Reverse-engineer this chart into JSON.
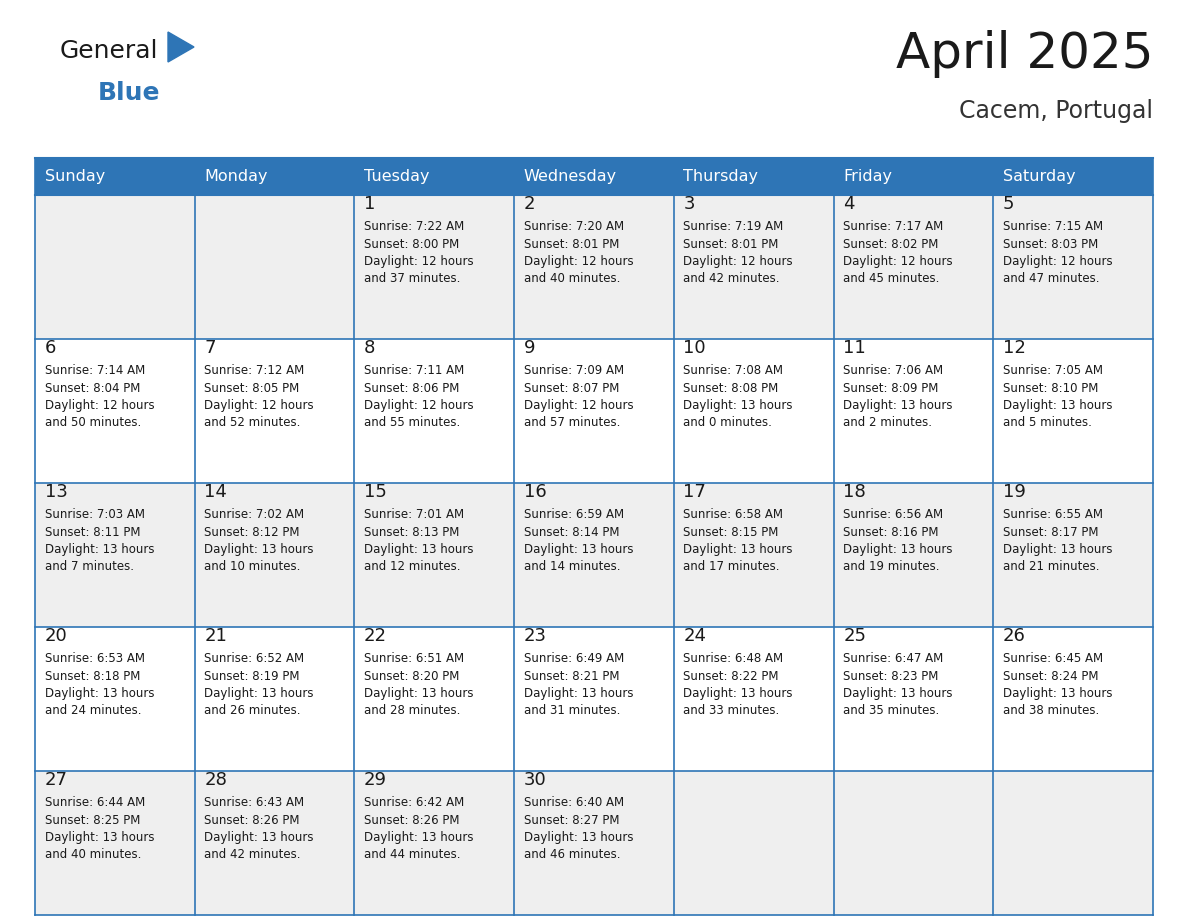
{
  "title": "April 2025",
  "subtitle": "Cacem, Portugal",
  "header_bg": "#2E75B6",
  "header_text_color": "#FFFFFF",
  "cell_bg_row0": "#EFEFEF",
  "cell_bg_row1": "#FFFFFF",
  "cell_border_color": "#2E75B6",
  "day_names": [
    "Sunday",
    "Monday",
    "Tuesday",
    "Wednesday",
    "Thursday",
    "Friday",
    "Saturday"
  ],
  "days": [
    {
      "day": "",
      "sunrise": "",
      "sunset": "",
      "daylight": ""
    },
    {
      "day": "",
      "sunrise": "",
      "sunset": "",
      "daylight": ""
    },
    {
      "day": "1",
      "sunrise": "7:22 AM",
      "sunset": "8:00 PM",
      "daylight": "12 hours and 37 minutes."
    },
    {
      "day": "2",
      "sunrise": "7:20 AM",
      "sunset": "8:01 PM",
      "daylight": "12 hours and 40 minutes."
    },
    {
      "day": "3",
      "sunrise": "7:19 AM",
      "sunset": "8:01 PM",
      "daylight": "12 hours and 42 minutes."
    },
    {
      "day": "4",
      "sunrise": "7:17 AM",
      "sunset": "8:02 PM",
      "daylight": "12 hours and 45 minutes."
    },
    {
      "day": "5",
      "sunrise": "7:15 AM",
      "sunset": "8:03 PM",
      "daylight": "12 hours and 47 minutes."
    },
    {
      "day": "6",
      "sunrise": "7:14 AM",
      "sunset": "8:04 PM",
      "daylight": "12 hours and 50 minutes."
    },
    {
      "day": "7",
      "sunrise": "7:12 AM",
      "sunset": "8:05 PM",
      "daylight": "12 hours and 52 minutes."
    },
    {
      "day": "8",
      "sunrise": "7:11 AM",
      "sunset": "8:06 PM",
      "daylight": "12 hours and 55 minutes."
    },
    {
      "day": "9",
      "sunrise": "7:09 AM",
      "sunset": "8:07 PM",
      "daylight": "12 hours and 57 minutes."
    },
    {
      "day": "10",
      "sunrise": "7:08 AM",
      "sunset": "8:08 PM",
      "daylight": "13 hours and 0 minutes."
    },
    {
      "day": "11",
      "sunrise": "7:06 AM",
      "sunset": "8:09 PM",
      "daylight": "13 hours and 2 minutes."
    },
    {
      "day": "12",
      "sunrise": "7:05 AM",
      "sunset": "8:10 PM",
      "daylight": "13 hours and 5 minutes."
    },
    {
      "day": "13",
      "sunrise": "7:03 AM",
      "sunset": "8:11 PM",
      "daylight": "13 hours and 7 minutes."
    },
    {
      "day": "14",
      "sunrise": "7:02 AM",
      "sunset": "8:12 PM",
      "daylight": "13 hours and 10 minutes."
    },
    {
      "day": "15",
      "sunrise": "7:01 AM",
      "sunset": "8:13 PM",
      "daylight": "13 hours and 12 minutes."
    },
    {
      "day": "16",
      "sunrise": "6:59 AM",
      "sunset": "8:14 PM",
      "daylight": "13 hours and 14 minutes."
    },
    {
      "day": "17",
      "sunrise": "6:58 AM",
      "sunset": "8:15 PM",
      "daylight": "13 hours and 17 minutes."
    },
    {
      "day": "18",
      "sunrise": "6:56 AM",
      "sunset": "8:16 PM",
      "daylight": "13 hours and 19 minutes."
    },
    {
      "day": "19",
      "sunrise": "6:55 AM",
      "sunset": "8:17 PM",
      "daylight": "13 hours and 21 minutes."
    },
    {
      "day": "20",
      "sunrise": "6:53 AM",
      "sunset": "8:18 PM",
      "daylight": "13 hours and 24 minutes."
    },
    {
      "day": "21",
      "sunrise": "6:52 AM",
      "sunset": "8:19 PM",
      "daylight": "13 hours and 26 minutes."
    },
    {
      "day": "22",
      "sunrise": "6:51 AM",
      "sunset": "8:20 PM",
      "daylight": "13 hours and 28 minutes."
    },
    {
      "day": "23",
      "sunrise": "6:49 AM",
      "sunset": "8:21 PM",
      "daylight": "13 hours and 31 minutes."
    },
    {
      "day": "24",
      "sunrise": "6:48 AM",
      "sunset": "8:22 PM",
      "daylight": "13 hours and 33 minutes."
    },
    {
      "day": "25",
      "sunrise": "6:47 AM",
      "sunset": "8:23 PM",
      "daylight": "13 hours and 35 minutes."
    },
    {
      "day": "26",
      "sunrise": "6:45 AM",
      "sunset": "8:24 PM",
      "daylight": "13 hours and 38 minutes."
    },
    {
      "day": "27",
      "sunrise": "6:44 AM",
      "sunset": "8:25 PM",
      "daylight": "13 hours and 40 minutes."
    },
    {
      "day": "28",
      "sunrise": "6:43 AM",
      "sunset": "8:26 PM",
      "daylight": "13 hours and 42 minutes."
    },
    {
      "day": "29",
      "sunrise": "6:42 AM",
      "sunset": "8:26 PM",
      "daylight": "13 hours and 44 minutes."
    },
    {
      "day": "30",
      "sunrise": "6:40 AM",
      "sunset": "8:27 PM",
      "daylight": "13 hours and 46 minutes."
    },
    {
      "day": "",
      "sunrise": "",
      "sunset": "",
      "daylight": ""
    },
    {
      "day": "",
      "sunrise": "",
      "sunset": "",
      "daylight": ""
    },
    {
      "day": "",
      "sunrise": "",
      "sunset": "",
      "daylight": ""
    }
  ],
  "num_weeks": 5,
  "logo_general_color": "#1a1a1a",
  "logo_blue_color": "#2E75B6",
  "title_color": "#1a1a1a",
  "subtitle_color": "#333333",
  "title_fontsize": 36,
  "subtitle_fontsize": 17,
  "header_fontsize": 11.5,
  "day_num_fontsize": 13,
  "cell_text_fontsize": 8.5
}
